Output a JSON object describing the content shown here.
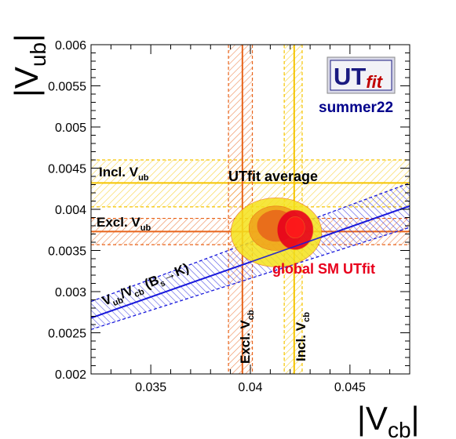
{
  "chart_data": {
    "type": "scatter",
    "xlabel": "|V",
    "xlabel_sub": "cb",
    "ylabel": "|V",
    "ylabel_sub": "ub",
    "xlim": [
      0.032,
      0.048
    ],
    "ylim": [
      0.002,
      0.006
    ],
    "x_ticks": [
      {
        "v": 0.035,
        "label": "0.035"
      },
      {
        "v": 0.04,
        "label": "0.04"
      },
      {
        "v": 0.045,
        "label": "0.045"
      }
    ],
    "y_ticks": [
      {
        "v": 0.002,
        "label": "0.002"
      },
      {
        "v": 0.0025,
        "label": "0.0025"
      },
      {
        "v": 0.003,
        "label": "0.003"
      },
      {
        "v": 0.0035,
        "label": "0.0035"
      },
      {
        "v": 0.004,
        "label": "0.004"
      },
      {
        "v": 0.0045,
        "label": "0.0045"
      },
      {
        "v": 0.005,
        "label": "0.005"
      },
      {
        "v": 0.0055,
        "label": "0.0055"
      },
      {
        "v": 0.006,
        "label": "0.006"
      }
    ],
    "bands": [
      {
        "id": "incl-vub",
        "orientation": "horizontal",
        "center": 0.00432,
        "low": 0.00403,
        "high": 0.0046,
        "color": "#f5c400",
        "label": "Incl. V",
        "label_sub": "ub"
      },
      {
        "id": "excl-vub",
        "orientation": "horizontal",
        "center": 0.00373,
        "low": 0.00357,
        "high": 0.00389,
        "color": "#e8641b",
        "label": "Excl. V",
        "label_sub": "ub"
      },
      {
        "id": "excl-vcb",
        "orientation": "vertical",
        "center": 0.0396,
        "low": 0.0389,
        "high": 0.0401,
        "color": "#e8641b",
        "label": "Excl. V",
        "label_sub": "cb"
      },
      {
        "id": "incl-vcb",
        "orientation": "vertical",
        "center": 0.0422,
        "low": 0.0417,
        "high": 0.0426,
        "color": "#f5c400",
        "label": "Incl. V",
        "label_sub": "cb"
      }
    ],
    "ratio_band": {
      "color": "#1a1adc",
      "central": [
        [
          0.032,
          0.00268
        ],
        [
          0.048,
          0.00404
        ]
      ],
      "upper": [
        [
          0.032,
          0.00288
        ],
        [
          0.048,
          0.00432
        ]
      ],
      "lower": [
        [
          0.032,
          0.00254
        ],
        [
          0.048,
          0.00378
        ]
      ],
      "label": "V",
      "label_sub1": "ub",
      "label_mid": "/V",
      "label_sub2": "cb",
      "label_tail": " (B",
      "label_sub3": "s",
      "label_end": "→K)"
    },
    "utfit_average": {
      "label": "UTfit average",
      "regions": [
        {
          "cx": 0.0413,
          "cy": 0.00372,
          "rx": 0.00228,
          "ry": 0.00042,
          "color": "#f5e21c"
        },
        {
          "cx": 0.04128,
          "cy": 0.00377,
          "rx": 0.00135,
          "ry": 0.00027,
          "color": "#f0a21b"
        },
        {
          "cx": 0.0413,
          "cy": 0.0038,
          "rx": 0.00095,
          "ry": 0.00019,
          "color": "#e8641b"
        }
      ]
    },
    "global_sm": {
      "label": "global SM UTfit",
      "regions": [
        {
          "cx": 0.04225,
          "cy": 0.00375,
          "rx": 0.0009,
          "ry": 0.00024,
          "color": "#e8001c"
        },
        {
          "cx": 0.04225,
          "cy": 0.00378,
          "rx": 0.00048,
          "ry": 0.00013,
          "color": "#ff1a1a"
        }
      ]
    },
    "logo": {
      "text_main": "UT",
      "text_italic": "fit",
      "caption": "summer22",
      "caption_color": "#00008b"
    }
  }
}
